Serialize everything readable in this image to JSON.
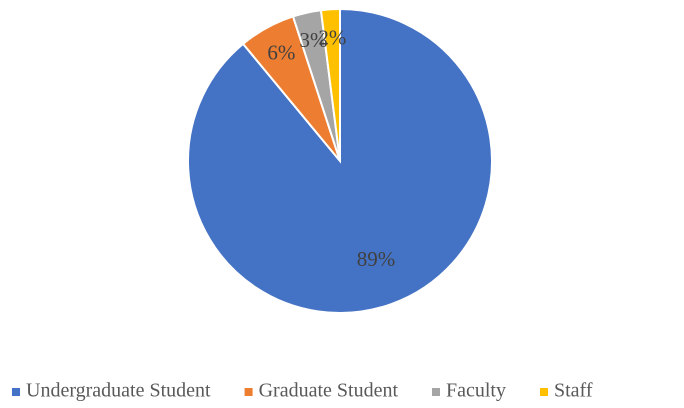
{
  "chart_data": {
    "type": "pie",
    "categories": [
      "Undergraduate Student",
      "Graduate Student",
      "Faculty",
      "Staff"
    ],
    "values": [
      89,
      6,
      3,
      2
    ],
    "value_labels": [
      "89%",
      "6%",
      "3%",
      "2%"
    ],
    "colors": [
      "#4472c4",
      "#ed7d31",
      "#a5a5a5",
      "#ffc000"
    ],
    "legend": "bottom"
  }
}
